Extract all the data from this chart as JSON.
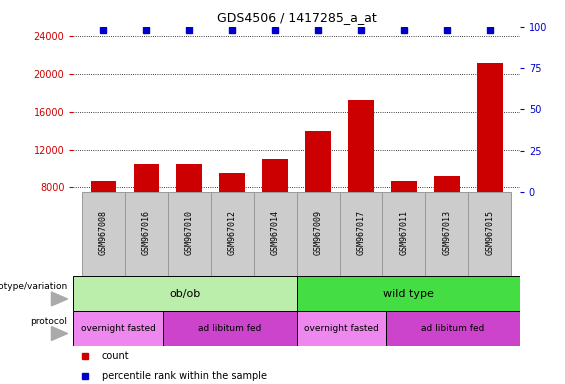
{
  "title": "GDS4506 / 1417285_a_at",
  "samples": [
    "GSM967008",
    "GSM967016",
    "GSM967010",
    "GSM967012",
    "GSM967014",
    "GSM967009",
    "GSM967017",
    "GSM967011",
    "GSM967013",
    "GSM967015"
  ],
  "counts": [
    8700,
    10500,
    10500,
    9500,
    11000,
    14000,
    17200,
    8700,
    9200,
    21200
  ],
  "ylim_left": [
    7500,
    25000
  ],
  "ylim_right": [
    0,
    100
  ],
  "yticks_left": [
    8000,
    12000,
    16000,
    20000,
    24000
  ],
  "yticks_right": [
    0,
    25,
    50,
    75,
    100
  ],
  "bar_color": "#cc0000",
  "dot_color": "#0000cc",
  "bar_width": 0.6,
  "genotype_groups": [
    {
      "label": "ob/ob",
      "start": 0,
      "end": 5,
      "color": "#bbeeaa"
    },
    {
      "label": "wild type",
      "start": 5,
      "end": 10,
      "color": "#44dd44"
    }
  ],
  "protocol_groups": [
    {
      "label": "overnight fasted",
      "start": 0,
      "end": 2,
      "color": "#ee88ee"
    },
    {
      "label": "ad libitum fed",
      "start": 2,
      "end": 5,
      "color": "#cc44cc"
    },
    {
      "label": "overnight fasted",
      "start": 5,
      "end": 7,
      "color": "#ee88ee"
    },
    {
      "label": "ad libitum fed",
      "start": 7,
      "end": 10,
      "color": "#cc44cc"
    }
  ],
  "left_tick_color": "#cc0000",
  "right_tick_color": "#0000cc",
  "label_row_color": "#cccccc",
  "label_row_edge_color": "#999999"
}
